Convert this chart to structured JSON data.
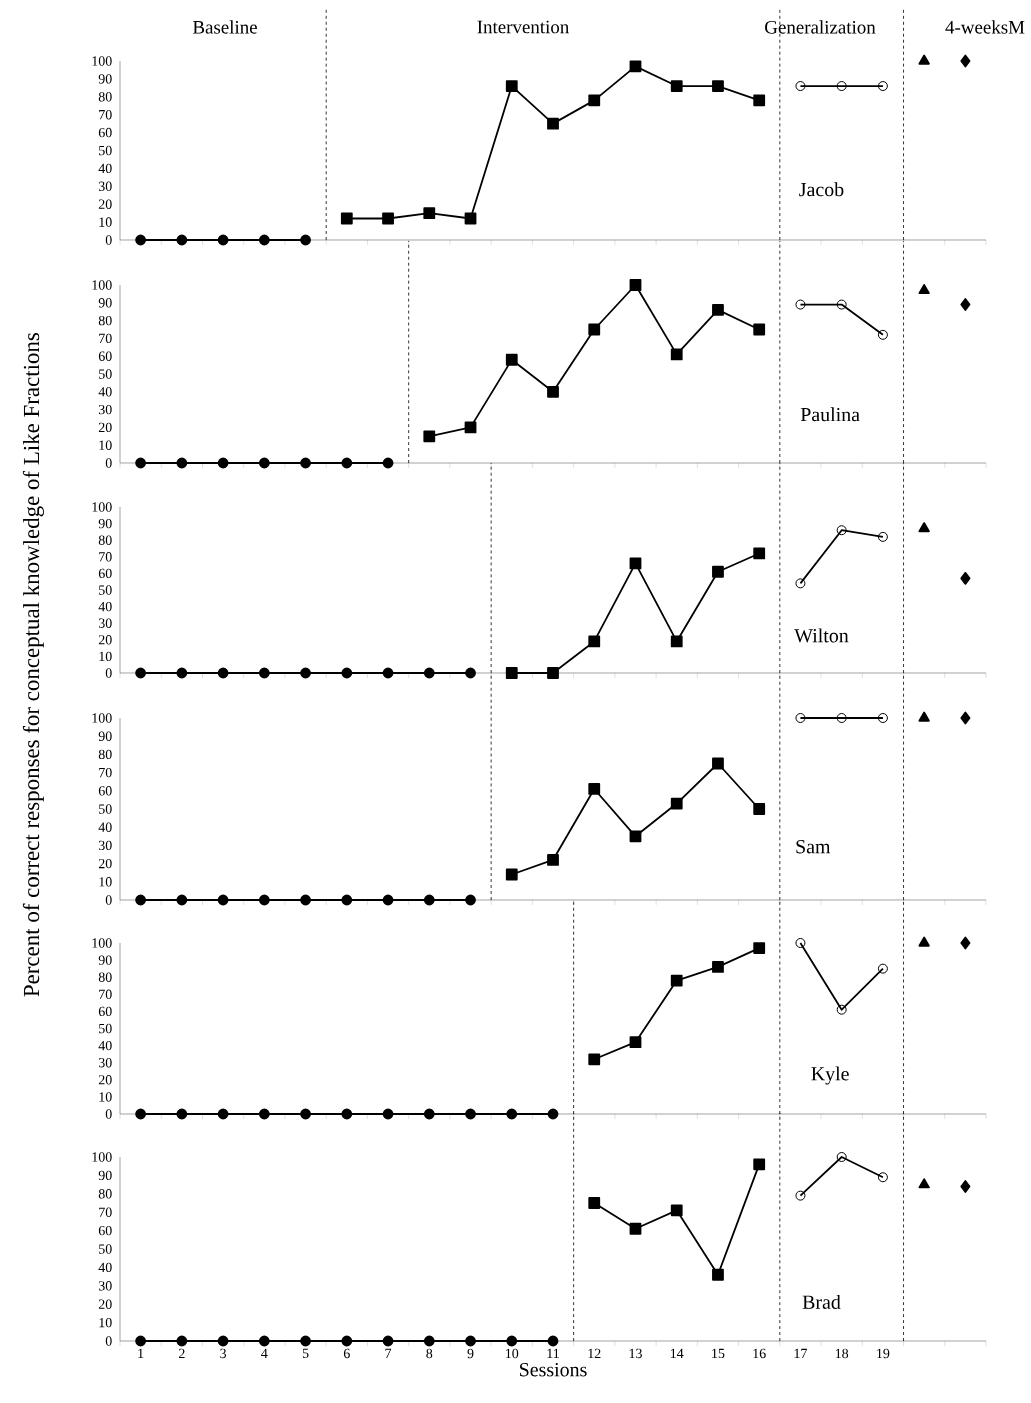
{
  "chart_data": [
    {
      "type": "line",
      "xlim": [
        0.5,
        21.5
      ],
      "xticks": [
        1,
        2,
        3,
        4,
        5,
        6,
        7,
        8,
        9,
        10,
        11,
        12,
        13,
        14,
        15,
        16,
        17,
        18,
        19
      ],
      "ylim": [
        0,
        100
      ],
      "yticks": [
        0,
        10,
        20,
        30,
        40,
        50,
        60,
        70,
        80,
        90,
        100
      ],
      "tick_labels": "y",
      "title": "Jacob",
      "annotations": [
        "Baseline",
        "Intervention",
        "Generalization",
        "4-weeksM"
      ],
      "ref_lines": [
        {
          "axis": "x",
          "value": 5.5,
          "line_style": "dashed"
        },
        {
          "axis": "x",
          "value": 16.5,
          "line_style": "dashed"
        },
        {
          "axis": "x",
          "value": 19.5,
          "line_style": "dashed"
        }
      ],
      "series": [
        {
          "marker": "circle",
          "color": "#000000",
          "x": [
            1,
            2,
            3,
            4,
            5
          ],
          "values": [
            0,
            0,
            0,
            0,
            0
          ]
        },
        {
          "marker": "square",
          "color": "#000000",
          "x": [
            6,
            7,
            8,
            9,
            10,
            11,
            12,
            13,
            14,
            15,
            16
          ],
          "values": [
            12,
            12,
            15,
            12,
            86,
            65,
            78,
            97,
            86,
            86,
            78
          ]
        },
        {
          "marker": "circle-open",
          "color": "#000000",
          "x": [
            17,
            18,
            19
          ],
          "values": [
            86,
            86,
            86
          ]
        },
        {
          "type": "scatter",
          "marker": "triangle",
          "color": "#000000",
          "x": [
            20
          ],
          "values": [
            100
          ]
        },
        {
          "type": "scatter",
          "marker": "diamond",
          "color": "#000000",
          "x": [
            21
          ],
          "values": [
            100
          ]
        }
      ]
    },
    {
      "type": "line",
      "xlim": [
        0.5,
        21.5
      ],
      "xticks": [
        1,
        2,
        3,
        4,
        5,
        6,
        7,
        8,
        9,
        10,
        11,
        12,
        13,
        14,
        15,
        16,
        17,
        18,
        19
      ],
      "ylim": [
        0,
        100
      ],
      "yticks": [
        0,
        10,
        20,
        30,
        40,
        50,
        60,
        70,
        80,
        90,
        100
      ],
      "tick_labels": "y",
      "title": "Paulina",
      "ref_lines": [
        {
          "axis": "x",
          "value": 7.5,
          "line_style": "dashed"
        },
        {
          "axis": "x",
          "value": 16.5,
          "line_style": "dashed"
        },
        {
          "axis": "x",
          "value": 19.5,
          "line_style": "dashed"
        }
      ],
      "series": [
        {
          "marker": "circle",
          "color": "#000000",
          "x": [
            1,
            2,
            3,
            4,
            5,
            6,
            7
          ],
          "values": [
            0,
            0,
            0,
            0,
            0,
            0,
            0
          ]
        },
        {
          "marker": "square",
          "color": "#000000",
          "x": [
            8,
            9,
            10,
            11,
            12,
            13,
            14,
            15,
            16
          ],
          "values": [
            15,
            20,
            58,
            40,
            75,
            100,
            61,
            86,
            75
          ]
        },
        {
          "marker": "circle-open",
          "color": "#000000",
          "x": [
            17,
            18,
            19
          ],
          "values": [
            89,
            89,
            72
          ]
        },
        {
          "type": "scatter",
          "marker": "triangle",
          "color": "#000000",
          "x": [
            20
          ],
          "values": [
            97
          ]
        },
        {
          "type": "scatter",
          "marker": "diamond",
          "color": "#000000",
          "x": [
            21
          ],
          "values": [
            89
          ]
        }
      ]
    },
    {
      "type": "line",
      "xlim": [
        0.5,
        21.5
      ],
      "xticks": [
        1,
        2,
        3,
        4,
        5,
        6,
        7,
        8,
        9,
        10,
        11,
        12,
        13,
        14,
        15,
        16,
        17,
        18,
        19
      ],
      "ylim": [
        0,
        100
      ],
      "yticks": [
        0,
        10,
        20,
        30,
        40,
        50,
        60,
        70,
        80,
        90,
        100
      ],
      "tick_labels": "y",
      "ylabel": "Percent of correct responses for conceptual knowledge of Like Fractions",
      "title": "Wilton",
      "ref_lines": [
        {
          "axis": "x",
          "value": 9.5,
          "line_style": "dashed"
        },
        {
          "axis": "x",
          "value": 16.5,
          "line_style": "dashed"
        },
        {
          "axis": "x",
          "value": 19.5,
          "line_style": "dashed"
        }
      ],
      "series": [
        {
          "marker": "circle",
          "color": "#000000",
          "x": [
            1,
            2,
            3,
            4,
            5,
            6,
            7,
            8,
            9
          ],
          "values": [
            0,
            0,
            0,
            0,
            0,
            0,
            0,
            0,
            0
          ]
        },
        {
          "marker": "square",
          "color": "#000000",
          "x": [
            10,
            11,
            12,
            13,
            14,
            15,
            16
          ],
          "values": [
            0,
            0,
            19,
            66,
            19,
            61,
            72
          ]
        },
        {
          "marker": "circle-open",
          "color": "#000000",
          "x": [
            17,
            18,
            19
          ],
          "values": [
            54,
            86,
            82
          ]
        },
        {
          "type": "scatter",
          "marker": "triangle",
          "color": "#000000",
          "x": [
            20
          ],
          "values": [
            87
          ]
        },
        {
          "type": "scatter",
          "marker": "diamond",
          "color": "#000000",
          "x": [
            21
          ],
          "values": [
            57
          ]
        }
      ]
    },
    {
      "type": "line",
      "xlim": [
        0.5,
        21.5
      ],
      "xticks": [
        1,
        2,
        3,
        4,
        5,
        6,
        7,
        8,
        9,
        10,
        11,
        12,
        13,
        14,
        15,
        16,
        17,
        18,
        19
      ],
      "ylim": [
        0,
        100
      ],
      "yticks": [
        0,
        10,
        20,
        30,
        40,
        50,
        60,
        70,
        80,
        90,
        100
      ],
      "tick_labels": "y",
      "title": "Sam",
      "ref_lines": [
        {
          "axis": "x",
          "value": 9.5,
          "line_style": "dashed"
        },
        {
          "axis": "x",
          "value": 16.5,
          "line_style": "dashed"
        },
        {
          "axis": "x",
          "value": 19.5,
          "line_style": "dashed"
        }
      ],
      "series": [
        {
          "marker": "circle",
          "color": "#000000",
          "x": [
            1,
            2,
            3,
            4,
            5,
            6,
            7,
            8,
            9
          ],
          "values": [
            0,
            0,
            0,
            0,
            0,
            0,
            0,
            0,
            0
          ]
        },
        {
          "marker": "square",
          "color": "#000000",
          "x": [
            10,
            11,
            12,
            13,
            14,
            15,
            16
          ],
          "values": [
            14,
            22,
            61,
            35,
            53,
            75,
            50
          ]
        },
        {
          "marker": "circle-open",
          "color": "#000000",
          "x": [
            17,
            18,
            19
          ],
          "values": [
            100,
            100,
            100
          ]
        },
        {
          "type": "scatter",
          "marker": "triangle",
          "color": "#000000",
          "x": [
            20
          ],
          "values": [
            100
          ]
        },
        {
          "type": "scatter",
          "marker": "diamond",
          "color": "#000000",
          "x": [
            21
          ],
          "values": [
            100
          ]
        }
      ]
    },
    {
      "type": "line",
      "xlim": [
        0.5,
        21.5
      ],
      "xticks": [
        1,
        2,
        3,
        4,
        5,
        6,
        7,
        8,
        9,
        10,
        11,
        12,
        13,
        14,
        15,
        16,
        17,
        18,
        19
      ],
      "ylim": [
        0,
        100
      ],
      "yticks": [
        0,
        10,
        20,
        30,
        40,
        50,
        60,
        70,
        80,
        90,
        100
      ],
      "tick_labels": "y",
      "title": "Kyle",
      "ref_lines": [
        {
          "axis": "x",
          "value": 11.5,
          "line_style": "dashed"
        },
        {
          "axis": "x",
          "value": 16.5,
          "line_style": "dashed"
        },
        {
          "axis": "x",
          "value": 19.5,
          "line_style": "dashed"
        }
      ],
      "series": [
        {
          "marker": "circle",
          "color": "#000000",
          "x": [
            1,
            2,
            3,
            4,
            5,
            6,
            7,
            8,
            9,
            10,
            11
          ],
          "values": [
            0,
            0,
            0,
            0,
            0,
            0,
            0,
            0,
            0,
            0,
            0
          ]
        },
        {
          "marker": "square",
          "color": "#000000",
          "x": [
            12,
            13,
            14,
            15,
            16
          ],
          "values": [
            32,
            42,
            78,
            86,
            97
          ]
        },
        {
          "marker": "circle-open",
          "color": "#000000",
          "x": [
            17,
            18,
            19
          ],
          "values": [
            100,
            61,
            85
          ]
        },
        {
          "type": "scatter",
          "marker": "triangle",
          "color": "#000000",
          "x": [
            20
          ],
          "values": [
            100
          ]
        },
        {
          "type": "scatter",
          "marker": "diamond",
          "color": "#000000",
          "x": [
            21
          ],
          "values": [
            100
          ]
        }
      ]
    },
    {
      "type": "line",
      "xlim": [
        0.5,
        21.5
      ],
      "xticks": [
        1,
        2,
        3,
        4,
        5,
        6,
        7,
        8,
        9,
        10,
        11,
        12,
        13,
        14,
        15,
        16,
        17,
        18,
        19
      ],
      "ylim": [
        0,
        100
      ],
      "yticks": [
        0,
        10,
        20,
        30,
        40,
        50,
        60,
        70,
        80,
        90,
        100
      ],
      "xlabel": "Sessions",
      "title": "Brad",
      "ref_lines": [
        {
          "axis": "x",
          "value": 11.5,
          "line_style": "dashed"
        },
        {
          "axis": "x",
          "value": 16.5,
          "line_style": "dashed"
        },
        {
          "axis": "x",
          "value": 19.5,
          "line_style": "dashed"
        }
      ],
      "series": [
        {
          "marker": "circle",
          "color": "#000000",
          "x": [
            1,
            2,
            3,
            4,
            5,
            6,
            7,
            8,
            9,
            10,
            11
          ],
          "values": [
            0,
            0,
            0,
            0,
            0,
            0,
            0,
            0,
            0,
            0,
            0
          ]
        },
        {
          "marker": "square",
          "color": "#000000",
          "x": [
            12,
            13,
            14,
            15,
            16
          ],
          "values": [
            75,
            61,
            71,
            36,
            96
          ]
        },
        {
          "marker": "circle-open",
          "color": "#000000",
          "x": [
            17,
            18,
            19
          ],
          "values": [
            79,
            100,
            89
          ]
        },
        {
          "type": "scatter",
          "marker": "triangle",
          "color": "#000000",
          "x": [
            20
          ],
          "values": [
            85
          ]
        },
        {
          "type": "scatter",
          "marker": "diamond",
          "color": "#000000",
          "x": [
            21
          ],
          "values": [
            84
          ]
        }
      ]
    }
  ]
}
